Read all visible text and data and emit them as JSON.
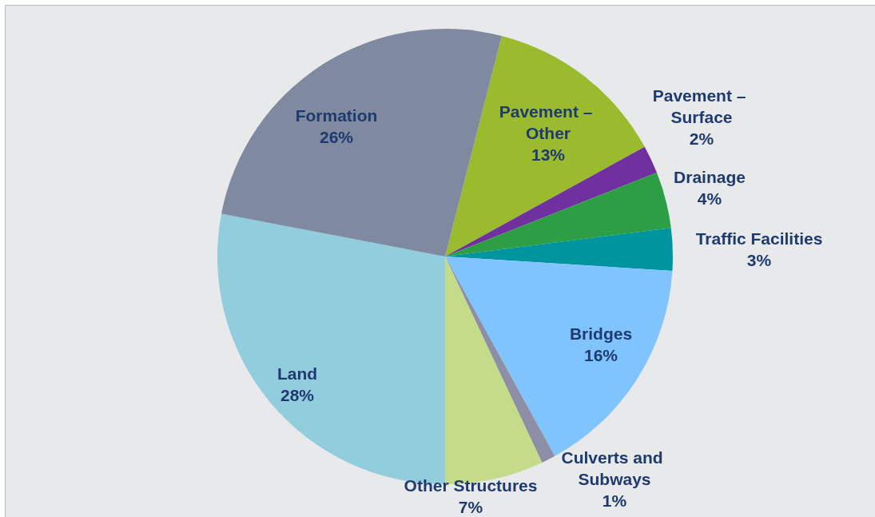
{
  "chart_data": {
    "type": "pie",
    "categories": [
      "Pavement – Other",
      "Pavement – Surface",
      "Drainage",
      "Traffic Facilities",
      "Bridges",
      "Culverts and Subways",
      "Other Structures",
      "Land",
      "Formation"
    ],
    "values": [
      13,
      2,
      4,
      3,
      16,
      1,
      7,
      28,
      26
    ],
    "value_labels": [
      "13%",
      "2%",
      "4%",
      "3%",
      "16%",
      "1%",
      "7%",
      "28%",
      "26%"
    ],
    "colors": [
      "#9bbb2f",
      "#7030a0",
      "#2e9e44",
      "#00949e",
      "#80c4ff",
      "#8c8fa6",
      "#c4dc8a",
      "#92cddd",
      "#7f8aa1"
    ]
  }
}
